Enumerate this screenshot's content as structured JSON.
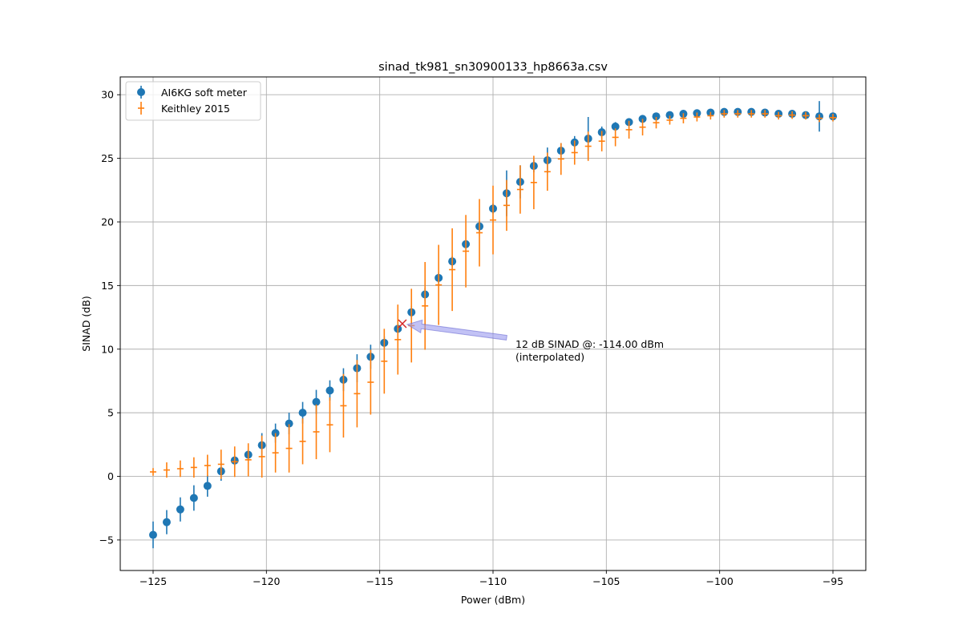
{
  "chart_data": {
    "type": "scatter",
    "title": "sinad_tk981_sn30900133_hp8663a.csv",
    "xlabel": "Power (dBm)",
    "ylabel": "SINAD (dB)",
    "xlim": [
      -126.45,
      -93.55
    ],
    "ylim": [
      -7.4,
      31.4
    ],
    "x_ticks": [
      -125,
      -120,
      -115,
      -110,
      -105,
      -100,
      -95
    ],
    "x_tick_labels": [
      "−125",
      "−120",
      "−115",
      "−110",
      "−105",
      "−100",
      "−95"
    ],
    "y_ticks": [
      -5,
      0,
      5,
      10,
      15,
      20,
      25,
      30
    ],
    "y_tick_labels": [
      "−5",
      "0",
      "5",
      "10",
      "15",
      "20",
      "25",
      "30"
    ],
    "grid": true,
    "legend_position": "upper-left",
    "x": [
      -125.0,
      -124.4,
      -123.8,
      -123.2,
      -122.6,
      -122.0,
      -121.4,
      -120.8,
      -120.2,
      -119.6,
      -119.0,
      -118.4,
      -117.8,
      -117.2,
      -116.6,
      -116.0,
      -115.4,
      -114.8,
      -114.2,
      -113.6,
      -113.0,
      -112.4,
      -111.8,
      -111.2,
      -110.6,
      -110.0,
      -109.4,
      -108.8,
      -108.2,
      -107.6,
      -107.0,
      -106.4,
      -105.8,
      -105.2,
      -104.6,
      -104.0,
      -103.4,
      -102.8,
      -102.2,
      -101.6,
      -101.0,
      -100.4,
      -99.8,
      -99.2,
      -98.6,
      -98.0,
      -97.4,
      -96.8,
      -96.2,
      -95.6,
      -95.0
    ],
    "series": [
      {
        "name": "AI6KG soft meter",
        "color": "#1f77b4",
        "marker": "circle",
        "values": [
          -4.6,
          -3.6,
          -2.6,
          -1.7,
          -0.75,
          0.4,
          1.25,
          1.7,
          2.45,
          3.4,
          4.15,
          5.0,
          5.85,
          6.75,
          7.6,
          8.5,
          9.4,
          10.5,
          11.6,
          12.9,
          14.3,
          15.6,
          16.9,
          18.25,
          19.65,
          21.05,
          22.25,
          23.15,
          24.4,
          24.85,
          25.6,
          26.25,
          26.55,
          27.05,
          27.5,
          27.85,
          28.1,
          28.3,
          28.4,
          28.5,
          28.55,
          28.6,
          28.65,
          28.65,
          28.65,
          28.6,
          28.5,
          28.5,
          28.4,
          28.3,
          28.3
        ],
        "errors": [
          1.05,
          0.95,
          0.95,
          1.0,
          0.85,
          0.75,
          0.4,
          0.4,
          0.95,
          0.75,
          0.85,
          0.85,
          0.95,
          0.8,
          0.9,
          1.1,
          0.95,
          0.5,
          0.35,
          0.5,
          0.5,
          0.4,
          0.4,
          0.3,
          0.4,
          0.4,
          1.8,
          1.3,
          0.5,
          1.0,
          0.6,
          0.5,
          1.7,
          0.45,
          0.35,
          0.25,
          0.3,
          0.2,
          0.15,
          0.15,
          0.15,
          0.15,
          0.2,
          0.15,
          0.2,
          0.15,
          0.15,
          0.15,
          0.15,
          1.2,
          0.15
        ]
      },
      {
        "name": "Keithley 2015",
        "color": "#ff7f0e",
        "marker": "plus",
        "values": [
          0.35,
          0.5,
          0.6,
          0.7,
          0.85,
          0.95,
          1.15,
          1.3,
          1.55,
          1.85,
          2.2,
          2.75,
          3.5,
          4.05,
          5.55,
          6.5,
          7.4,
          9.05,
          10.75,
          11.85,
          13.4,
          15.05,
          16.25,
          17.7,
          19.15,
          20.15,
          21.3,
          22.55,
          23.1,
          23.95,
          24.95,
          25.45,
          25.95,
          26.35,
          26.65,
          27.25,
          27.45,
          27.8,
          28.0,
          28.15,
          28.25,
          28.35,
          28.5,
          28.5,
          28.5,
          28.5,
          28.35,
          28.4,
          28.35,
          28.15,
          28.2
        ],
        "errors": [
          0.3,
          0.6,
          0.65,
          0.8,
          0.85,
          1.15,
          1.2,
          1.3,
          1.65,
          1.55,
          1.9,
          1.8,
          2.15,
          2.15,
          2.5,
          2.65,
          2.55,
          2.55,
          2.75,
          2.9,
          3.45,
          3.15,
          3.25,
          2.85,
          2.65,
          2.7,
          2.0,
          1.9,
          2.1,
          1.5,
          1.25,
          0.95,
          1.15,
          0.8,
          0.7,
          0.7,
          0.65,
          0.45,
          0.35,
          0.4,
          0.35,
          0.3,
          0.3,
          0.3,
          0.3,
          0.3,
          0.3,
          0.3,
          0.3,
          0.3,
          0.3
        ]
      }
    ],
    "marker_point": {
      "x": -114.0,
      "y": 12.0,
      "color": "#d62728",
      "marker": "x"
    },
    "annotation": {
      "lines": [
        "12 dB SINAD @: -114.00 dBm",
        "(interpolated)"
      ],
      "target": {
        "x": -114.0,
        "y": 12.0
      },
      "text_anchor": {
        "x": -109.25,
        "y": 10.2
      },
      "arrow_tail": {
        "x": -109.4,
        "y": 10.9
      },
      "arrow_color": "#9999ee"
    }
  }
}
